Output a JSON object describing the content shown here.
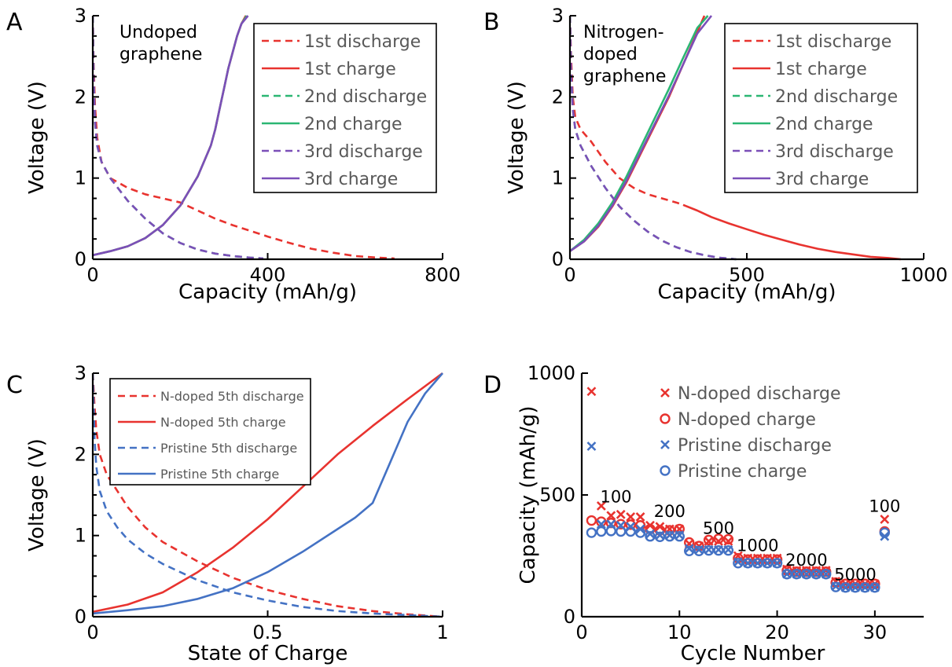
{
  "chart_data": [
    {
      "panel": "A",
      "type": "line",
      "annotation": [
        "Undoped",
        "graphene"
      ],
      "xlabel": "Capacity (mAh/g)",
      "ylabel": "Voltage (V)",
      "xlim": [
        0,
        800
      ],
      "ylim": [
        0,
        3
      ],
      "xticks": [
        "0",
        "400",
        "800"
      ],
      "yticks": [
        "0",
        "1",
        "2",
        "3"
      ],
      "legend_position": "top-right",
      "series": [
        {
          "name": "1st discharge",
          "color": "#e8332f",
          "style": "dashed",
          "x": [
            0,
            2,
            5,
            10,
            20,
            40,
            80,
            120,
            160,
            200,
            240,
            280,
            320,
            360,
            400,
            450,
            500,
            550,
            600,
            650,
            690
          ],
          "y": [
            3.0,
            2.4,
            1.9,
            1.5,
            1.2,
            1.0,
            0.88,
            0.8,
            0.75,
            0.7,
            0.6,
            0.5,
            0.42,
            0.35,
            0.28,
            0.2,
            0.13,
            0.08,
            0.04,
            0.02,
            0.01
          ]
        },
        {
          "name": "1st charge",
          "color": "#e8332f",
          "style": "solid",
          "x": [
            0,
            40,
            80,
            120,
            160,
            200,
            240,
            270,
            280,
            290,
            300,
            310,
            320,
            330,
            340,
            350
          ],
          "y": [
            0.05,
            0.1,
            0.16,
            0.26,
            0.42,
            0.66,
            1.02,
            1.4,
            1.6,
            1.85,
            2.1,
            2.35,
            2.55,
            2.75,
            2.9,
            3.0
          ]
        },
        {
          "name": "2nd discharge",
          "color": "#2bb673",
          "style": "dashed",
          "x": [
            0,
            2,
            5,
            10,
            20,
            40,
            80,
            120,
            160,
            200,
            240,
            280,
            320,
            360,
            390
          ],
          "y": [
            3.0,
            2.2,
            1.7,
            1.4,
            1.2,
            1.0,
            0.72,
            0.5,
            0.32,
            0.2,
            0.12,
            0.07,
            0.04,
            0.02,
            0.01
          ]
        },
        {
          "name": "2nd charge",
          "color": "#2bb673",
          "style": "solid",
          "x": [
            0,
            40,
            80,
            120,
            160,
            200,
            240,
            270,
            280,
            290,
            300,
            310,
            320,
            330,
            340,
            352
          ],
          "y": [
            0.05,
            0.1,
            0.16,
            0.26,
            0.42,
            0.66,
            1.02,
            1.4,
            1.6,
            1.85,
            2.1,
            2.35,
            2.55,
            2.75,
            2.9,
            3.0
          ]
        },
        {
          "name": "3rd discharge",
          "color": "#7b4fb8",
          "style": "dashed",
          "x": [
            0,
            2,
            5,
            10,
            20,
            40,
            80,
            120,
            160,
            200,
            240,
            280,
            320,
            360,
            390
          ],
          "y": [
            3.0,
            2.2,
            1.7,
            1.4,
            1.2,
            1.0,
            0.72,
            0.5,
            0.32,
            0.2,
            0.12,
            0.07,
            0.04,
            0.02,
            0.01
          ]
        },
        {
          "name": "3rd charge",
          "color": "#7b4fb8",
          "style": "solid",
          "x": [
            0,
            40,
            80,
            120,
            160,
            200,
            240,
            270,
            280,
            290,
            300,
            310,
            320,
            330,
            340,
            355
          ],
          "y": [
            0.05,
            0.1,
            0.16,
            0.26,
            0.42,
            0.66,
            1.02,
            1.4,
            1.6,
            1.85,
            2.1,
            2.35,
            2.55,
            2.75,
            2.9,
            3.0
          ]
        }
      ]
    },
    {
      "panel": "B",
      "type": "line",
      "annotation": [
        "Nitrogen-",
        "doped",
        "graphene"
      ],
      "xlabel": "Capacity (mAh/g)",
      "ylabel": "Voltage (V)",
      "xlim": [
        0,
        1000
      ],
      "ylim": [
        0,
        3
      ],
      "xticks": [
        "0",
        "500",
        "1000"
      ],
      "yticks": [
        "0",
        "1",
        "2",
        "3"
      ],
      "legend_position": "top-right",
      "series": [
        {
          "name": "1st discharge",
          "color": "#e8332f",
          "style": "dashed",
          "x": [
            0,
            3,
            8,
            15,
            30,
            60,
            100,
            140,
            180,
            220,
            260,
            300,
            320
          ],
          "y": [
            3.0,
            2.5,
            2.0,
            1.75,
            1.6,
            1.45,
            1.2,
            1.0,
            0.88,
            0.8,
            0.75,
            0.7,
            0.67
          ]
        },
        {
          "name": "1st charge",
          "color": "#e8332f",
          "style": "solid",
          "x": [
            0,
            40,
            80,
            120,
            160,
            200,
            240,
            280,
            320,
            360,
            380
          ],
          "y": [
            0.1,
            0.22,
            0.4,
            0.65,
            0.95,
            1.3,
            1.65,
            2.0,
            2.4,
            2.8,
            3.0
          ]
        },
        {
          "name": "1st discharge tail",
          "color": "#e8332f",
          "style": "solid",
          "x": [
            320,
            360,
            400,
            450,
            500,
            550,
            600,
            650,
            700,
            750,
            800,
            850,
            900,
            935
          ],
          "y": [
            0.67,
            0.6,
            0.52,
            0.44,
            0.37,
            0.3,
            0.24,
            0.18,
            0.13,
            0.09,
            0.06,
            0.03,
            0.015,
            0.0
          ]
        },
        {
          "name": "2nd discharge",
          "color": "#2bb673",
          "style": "dashed",
          "x": [
            0,
            3,
            8,
            15,
            30,
            60,
            100,
            140,
            180,
            220,
            260,
            300,
            340,
            380,
            420,
            470
          ],
          "y": [
            3.0,
            2.3,
            1.85,
            1.6,
            1.4,
            1.15,
            0.88,
            0.65,
            0.48,
            0.34,
            0.23,
            0.15,
            0.09,
            0.05,
            0.02,
            0.0
          ]
        },
        {
          "name": "2nd charge",
          "color": "#2bb673",
          "style": "solid",
          "x": [
            0,
            40,
            80,
            120,
            160,
            200,
            240,
            280,
            320,
            360,
            390
          ],
          "y": [
            0.1,
            0.24,
            0.44,
            0.7,
            1.02,
            1.38,
            1.74,
            2.1,
            2.48,
            2.85,
            3.0
          ]
        },
        {
          "name": "3rd discharge",
          "color": "#7b4fb8",
          "style": "dashed",
          "x": [
            0,
            3,
            8,
            15,
            30,
            60,
            100,
            140,
            180,
            220,
            260,
            300,
            340,
            380,
            420,
            470
          ],
          "y": [
            3.0,
            2.3,
            1.85,
            1.6,
            1.4,
            1.15,
            0.88,
            0.65,
            0.48,
            0.34,
            0.23,
            0.15,
            0.09,
            0.05,
            0.02,
            0.0
          ]
        },
        {
          "name": "3rd charge",
          "color": "#7b4fb8",
          "style": "solid",
          "x": [
            0,
            40,
            80,
            120,
            160,
            200,
            240,
            280,
            320,
            360,
            400
          ],
          "y": [
            0.1,
            0.22,
            0.41,
            0.66,
            0.97,
            1.32,
            1.67,
            2.02,
            2.4,
            2.78,
            3.0
          ]
        }
      ]
    },
    {
      "panel": "C",
      "type": "line",
      "xlabel": "State of Charge",
      "ylabel": "Voltage (V)",
      "xlim": [
        0,
        1
      ],
      "ylim": [
        0,
        3
      ],
      "xticks": [
        "0",
        "0.5",
        "1"
      ],
      "yticks": [
        "0",
        "1",
        "2",
        "3"
      ],
      "legend_position": "top-left",
      "series": [
        {
          "name": "N-doped 5th discharge",
          "color": "#e8332f",
          "style": "dashed",
          "x": [
            0,
            0.005,
            0.01,
            0.02,
            0.04,
            0.07,
            0.1,
            0.15,
            0.2,
            0.3,
            0.4,
            0.5,
            0.6,
            0.7,
            0.8,
            0.9,
            1.0
          ],
          "y": [
            3.0,
            2.6,
            2.3,
            2.0,
            1.75,
            1.55,
            1.35,
            1.1,
            0.92,
            0.68,
            0.48,
            0.33,
            0.22,
            0.13,
            0.07,
            0.03,
            0.0
          ]
        },
        {
          "name": "N-doped 5th charge",
          "color": "#e8332f",
          "style": "solid",
          "x": [
            0,
            0.1,
            0.2,
            0.3,
            0.4,
            0.5,
            0.6,
            0.7,
            0.8,
            0.9,
            1.0
          ],
          "y": [
            0.06,
            0.15,
            0.3,
            0.55,
            0.85,
            1.2,
            1.6,
            2.0,
            2.35,
            2.68,
            3.0
          ]
        },
        {
          "name": "Pristine 5th discharge",
          "color": "#4472c4",
          "style": "dashed",
          "x": [
            0,
            0.005,
            0.01,
            0.02,
            0.04,
            0.07,
            0.1,
            0.15,
            0.2,
            0.3,
            0.4,
            0.5,
            0.6,
            0.7,
            0.8,
            0.9,
            1.0
          ],
          "y": [
            3.0,
            2.2,
            1.85,
            1.55,
            1.3,
            1.1,
            0.95,
            0.78,
            0.65,
            0.45,
            0.3,
            0.2,
            0.12,
            0.07,
            0.04,
            0.02,
            0.0
          ]
        },
        {
          "name": "Pristine 5th charge",
          "color": "#4472c4",
          "style": "solid",
          "x": [
            0,
            0.1,
            0.2,
            0.3,
            0.4,
            0.5,
            0.6,
            0.7,
            0.75,
            0.8,
            0.85,
            0.9,
            0.95,
            1.0
          ],
          "y": [
            0.04,
            0.08,
            0.13,
            0.22,
            0.35,
            0.55,
            0.8,
            1.08,
            1.22,
            1.4,
            1.9,
            2.4,
            2.75,
            3.0
          ]
        }
      ]
    },
    {
      "panel": "D",
      "type": "scatter",
      "xlabel": "Cycle Number",
      "ylabel": "Capacity (mAh/g)",
      "xlim": [
        0,
        35
      ],
      "ylim": [
        0,
        1000
      ],
      "xticks": [
        "0",
        "10",
        "20",
        "30"
      ],
      "yticks": [
        "0",
        "500",
        "1000"
      ],
      "legend_position": "top-right",
      "annotations": [
        {
          "text": "100",
          "x": 3.5,
          "y": 470
        },
        {
          "text": "200",
          "x": 9,
          "y": 410
        },
        {
          "text": "500",
          "x": 14,
          "y": 340
        },
        {
          "text": "1000",
          "x": 18,
          "y": 270
        },
        {
          "text": "2000",
          "x": 23,
          "y": 210
        },
        {
          "text": "5000",
          "x": 28,
          "y": 150
        },
        {
          "text": "100",
          "x": 31,
          "y": 430
        }
      ],
      "series": [
        {
          "name": "N-doped discharge",
          "color": "#e8332f",
          "marker": "x",
          "x": [
            1,
            2,
            3,
            4,
            5,
            6,
            7,
            8,
            9,
            10,
            11,
            12,
            13,
            14,
            15,
            16,
            17,
            18,
            19,
            20,
            21,
            22,
            23,
            24,
            25,
            26,
            27,
            28,
            29,
            30,
            31
          ],
          "y": [
            925,
            455,
            415,
            420,
            410,
            410,
            375,
            370,
            360,
            360,
            300,
            290,
            310,
            310,
            310,
            250,
            240,
            240,
            240,
            240,
            195,
            190,
            190,
            190,
            190,
            145,
            135,
            135,
            135,
            135,
            400
          ]
        },
        {
          "name": "N-doped charge",
          "color": "#e8332f",
          "marker": "o",
          "x": [
            1,
            2,
            3,
            4,
            5,
            6,
            7,
            8,
            9,
            10,
            11,
            12,
            13,
            14,
            15,
            16,
            17,
            18,
            19,
            20,
            21,
            22,
            23,
            24,
            25,
            26,
            27,
            28,
            29,
            30,
            31
          ],
          "y": [
            395,
            390,
            385,
            380,
            378,
            375,
            360,
            355,
            355,
            360,
            305,
            290,
            315,
            320,
            318,
            240,
            235,
            235,
            235,
            235,
            190,
            185,
            185,
            185,
            185,
            140,
            135,
            135,
            135,
            135,
            350
          ]
        },
        {
          "name": "Pristine discharge",
          "color": "#4472c4",
          "marker": "x",
          "x": [
            1,
            2,
            3,
            4,
            5,
            6,
            7,
            8,
            9,
            10,
            11,
            12,
            13,
            14,
            15,
            16,
            17,
            18,
            19,
            20,
            21,
            22,
            23,
            24,
            25,
            26,
            27,
            28,
            29,
            30,
            31
          ],
          "y": [
            700,
            380,
            380,
            375,
            370,
            360,
            340,
            335,
            335,
            335,
            280,
            275,
            275,
            275,
            275,
            225,
            220,
            220,
            220,
            220,
            175,
            175,
            175,
            175,
            175,
            125,
            120,
            120,
            120,
            120,
            330
          ]
        },
        {
          "name": "Pristine charge",
          "color": "#4472c4",
          "marker": "o",
          "x": [
            1,
            2,
            3,
            4,
            5,
            6,
            7,
            8,
            9,
            10,
            11,
            12,
            13,
            14,
            15,
            16,
            17,
            18,
            19,
            20,
            21,
            22,
            23,
            24,
            25,
            26,
            27,
            28,
            29,
            30,
            31
          ],
          "y": [
            345,
            350,
            352,
            350,
            350,
            345,
            330,
            328,
            330,
            330,
            270,
            270,
            272,
            272,
            272,
            220,
            220,
            220,
            220,
            220,
            175,
            175,
            175,
            175,
            175,
            122,
            120,
            120,
            120,
            120,
            345
          ]
        }
      ]
    }
  ]
}
